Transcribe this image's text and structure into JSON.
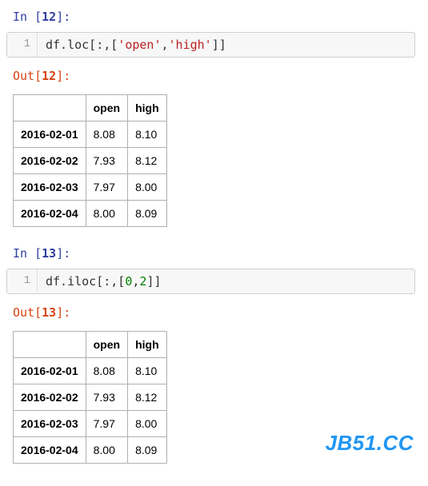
{
  "cell1": {
    "in_label_prefix": "In [",
    "in_num": "12",
    "in_label_suffix": "]:",
    "gutter": "1",
    "code_plain1": "df.loc[:,[",
    "code_str1": "'open'",
    "code_comma": ",",
    "code_str2": "'high'",
    "code_plain2": "]]",
    "out_label_prefix": "Out[",
    "out_num": "12",
    "out_label_suffix": "]:"
  },
  "table1": {
    "col_index_blank": "",
    "columns": [
      "open",
      "high"
    ],
    "rows": [
      {
        "idx": "2016-02-01",
        "open": "8.08",
        "high": "8.10"
      },
      {
        "idx": "2016-02-02",
        "open": "7.93",
        "high": "8.12"
      },
      {
        "idx": "2016-02-03",
        "open": "7.97",
        "high": "8.00"
      },
      {
        "idx": "2016-02-04",
        "open": "8.00",
        "high": "8.09"
      }
    ]
  },
  "cell2": {
    "in_label_prefix": "In [",
    "in_num": "13",
    "in_label_suffix": "]:",
    "gutter": "1",
    "code_plain1": "df.iloc[:,[",
    "code_num1": "0",
    "code_comma": ",",
    "code_num2": "2",
    "code_plain2": "]]",
    "out_label_prefix": "Out[",
    "out_num": "13",
    "out_label_suffix": "]:"
  },
  "table2": {
    "col_index_blank": "",
    "columns": [
      "open",
      "high"
    ],
    "rows": [
      {
        "idx": "2016-02-01",
        "open": "8.08",
        "high": "8.10"
      },
      {
        "idx": "2016-02-02",
        "open": "7.93",
        "high": "8.12"
      },
      {
        "idx": "2016-02-03",
        "open": "7.97",
        "high": "8.00"
      },
      {
        "idx": "2016-02-04",
        "open": "8.00",
        "high": "8.09"
      }
    ]
  },
  "watermark": "JB51.CC",
  "colors": {
    "prompt_in": "#303F9F",
    "prompt_out": "#D84315",
    "code_bg": "#f7f7f7",
    "border": "#cfcfcf",
    "string_token": "#BA2121",
    "number_token": "#008000",
    "watermark": "#2196F3"
  }
}
